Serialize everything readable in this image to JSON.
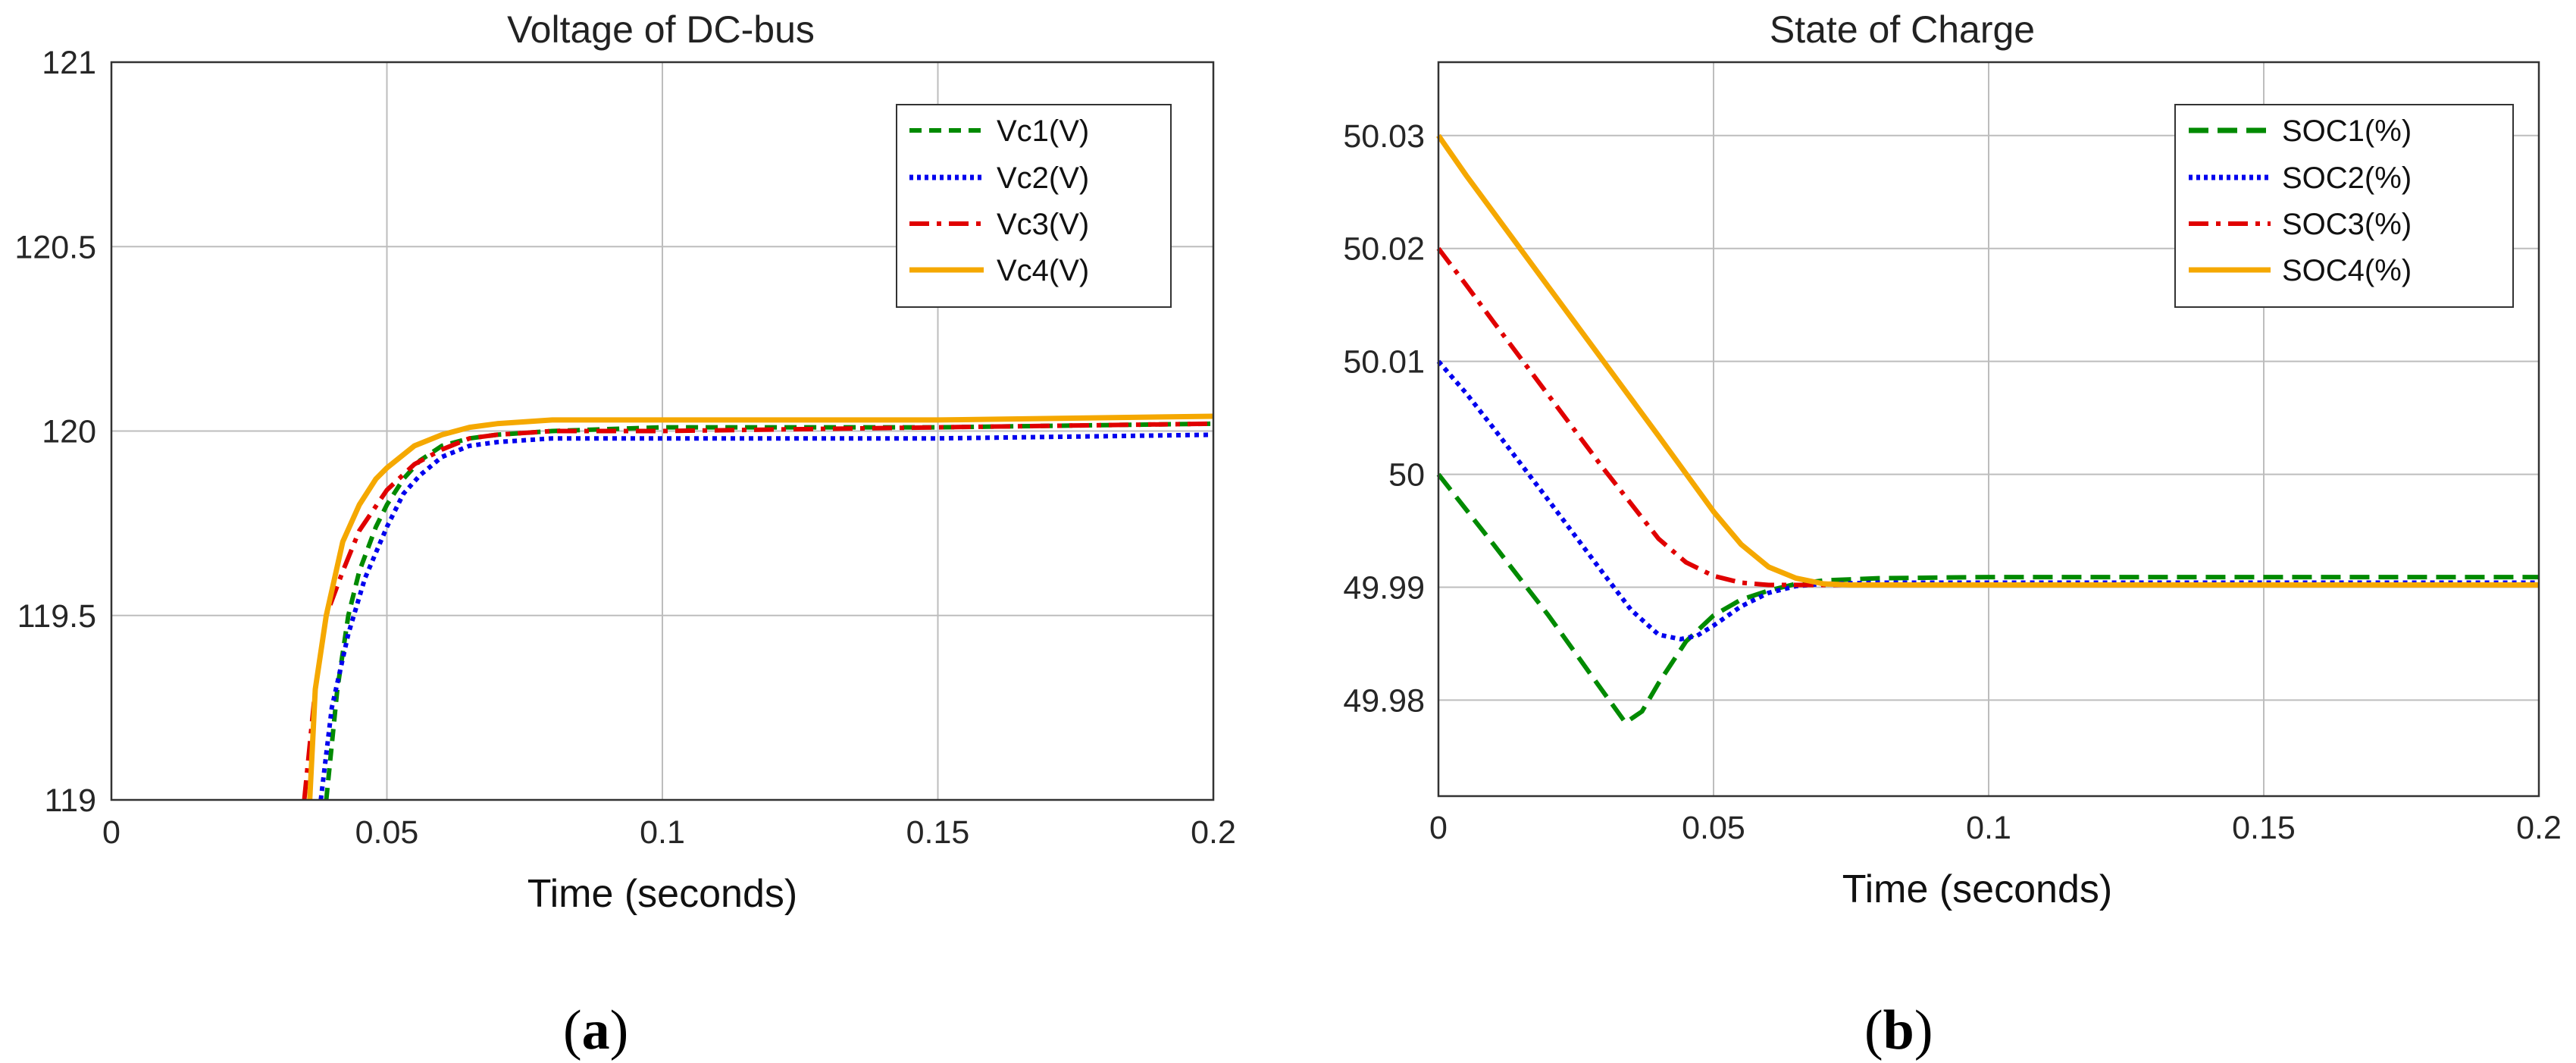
{
  "chart_data": [
    {
      "type": "line",
      "panel": "a",
      "caption": "a",
      "title": "Voltage of DC-bus",
      "xlabel": "Time (seconds)",
      "ylabel": "",
      "xlim": [
        0,
        0.2
      ],
      "ylim": [
        119,
        121
      ],
      "xticks": [
        "0",
        "0.05",
        "0.1",
        "0.15",
        "0.2"
      ],
      "xtick_values": [
        0,
        0.05,
        0.1,
        0.15,
        0.2
      ],
      "yticks": [
        "119",
        "119.5",
        "120",
        "120.5",
        "121"
      ],
      "ytick_values": [
        119,
        119.5,
        120,
        120.5,
        121
      ],
      "grid": true,
      "legend_position": "top-right",
      "series": [
        {
          "name": "Vc1(V)",
          "color": "#008a00",
          "style": "dashed",
          "x": [
            0.039,
            0.041,
            0.043,
            0.045,
            0.048,
            0.05,
            0.053,
            0.056,
            0.06,
            0.065,
            0.07,
            0.08,
            0.1,
            0.15,
            0.2
          ],
          "y": [
            119.0,
            119.3,
            119.5,
            119.62,
            119.74,
            119.8,
            119.87,
            119.92,
            119.96,
            119.98,
            119.99,
            120.0,
            120.01,
            120.01,
            120.02
          ]
        },
        {
          "name": "Vc2(V)",
          "color": "#0000ee",
          "style": "dotted",
          "x": [
            0.038,
            0.04,
            0.043,
            0.046,
            0.05,
            0.053,
            0.056,
            0.06,
            0.065,
            0.07,
            0.08,
            0.1,
            0.15,
            0.2
          ],
          "y": [
            119.0,
            119.25,
            119.45,
            119.6,
            119.74,
            119.83,
            119.88,
            119.93,
            119.96,
            119.97,
            119.98,
            119.98,
            119.98,
            119.99
          ]
        },
        {
          "name": "Vc3(V)",
          "color": "#e00000",
          "style": "dashdot",
          "x": [
            0.035,
            0.037,
            0.039,
            0.042,
            0.045,
            0.05,
            0.055,
            0.06,
            0.065,
            0.07,
            0.08,
            0.1,
            0.15,
            0.2
          ],
          "y": [
            119.0,
            119.3,
            119.5,
            119.62,
            119.73,
            119.84,
            119.91,
            119.95,
            119.98,
            119.99,
            120.0,
            120.0,
            120.01,
            120.02
          ]
        },
        {
          "name": "Vc4(V)",
          "color": "#f5a800",
          "style": "solid",
          "x": [
            0.036,
            0.037,
            0.039,
            0.042,
            0.045,
            0.048,
            0.05,
            0.055,
            0.06,
            0.065,
            0.07,
            0.08,
            0.1,
            0.15,
            0.2
          ],
          "y": [
            119.0,
            119.3,
            119.5,
            119.7,
            119.8,
            119.87,
            119.9,
            119.96,
            119.99,
            120.01,
            120.02,
            120.03,
            120.03,
            120.03,
            120.04
          ]
        }
      ]
    },
    {
      "type": "line",
      "panel": "b",
      "caption": "b",
      "title": "State of Charge",
      "xlabel": "Time (seconds)",
      "ylabel": "",
      "xlim": [
        0,
        0.2
      ],
      "ylim": [
        49.9715,
        50.0365
      ],
      "xticks": [
        "0",
        "0.05",
        "0.1",
        "0.15",
        "0.2"
      ],
      "xtick_values": [
        0,
        0.05,
        0.1,
        0.15,
        0.2
      ],
      "yticks": [
        "49.98",
        "49.99",
        "50",
        "50.01",
        "50.02",
        "50.03"
      ],
      "ytick_values": [
        49.98,
        49.99,
        50.0,
        50.01,
        50.02,
        50.03
      ],
      "grid": true,
      "legend_position": "top-right",
      "series": [
        {
          "name": "SOC1(%)",
          "color": "#008a00",
          "style": "dashed",
          "x": [
            0,
            0.01,
            0.02,
            0.03,
            0.034,
            0.037,
            0.04,
            0.045,
            0.05,
            0.055,
            0.06,
            0.065,
            0.07,
            0.08,
            0.1,
            0.15,
            0.2
          ],
          "y": [
            50.0,
            49.9938,
            49.9875,
            49.9807,
            49.978,
            49.979,
            49.9815,
            49.9852,
            49.9875,
            49.9889,
            49.9897,
            49.9903,
            49.9906,
            49.9908,
            49.9909,
            49.9909,
            49.9909
          ]
        },
        {
          "name": "SOC2(%)",
          "color": "#0000ee",
          "style": "dotted",
          "x": [
            0,
            0.005,
            0.01,
            0.02,
            0.03,
            0.035,
            0.04,
            0.044,
            0.047,
            0.05,
            0.055,
            0.06,
            0.065,
            0.07,
            0.08,
            0.1,
            0.15,
            0.2
          ],
          "y": [
            50.01,
            50.0072,
            50.0041,
            49.9977,
            49.9912,
            49.988,
            49.9858,
            49.9854,
            49.9857,
            49.9866,
            49.9883,
            49.9895,
            49.9901,
            49.9903,
            49.9904,
            49.9904,
            49.9904,
            49.9904
          ]
        },
        {
          "name": "SOC3(%)",
          "color": "#e00000",
          "style": "dashdot",
          "x": [
            0,
            0.005,
            0.01,
            0.02,
            0.03,
            0.04,
            0.045,
            0.05,
            0.055,
            0.06,
            0.065,
            0.07,
            0.08,
            0.1,
            0.15,
            0.2
          ],
          "y": [
            50.02,
            50.0168,
            50.0135,
            50.007,
            50.0005,
            49.9943,
            49.9922,
            49.991,
            49.9904,
            49.9902,
            49.9902,
            49.9902,
            49.9902,
            49.9902,
            49.9902,
            49.9902
          ]
        },
        {
          "name": "SOC4(%)",
          "color": "#f5a800",
          "style": "solid",
          "x": [
            0,
            0.005,
            0.01,
            0.02,
            0.03,
            0.04,
            0.05,
            0.055,
            0.06,
            0.065,
            0.07,
            0.075,
            0.08,
            0.1,
            0.15,
            0.2
          ],
          "y": [
            50.03,
            50.0265,
            50.0232,
            50.0166,
            50.01,
            50.0034,
            49.9967,
            49.9938,
            49.9918,
            49.9908,
            49.9903,
            49.9902,
            49.9902,
            49.9902,
            49.9902,
            49.9902
          ]
        }
      ]
    }
  ]
}
